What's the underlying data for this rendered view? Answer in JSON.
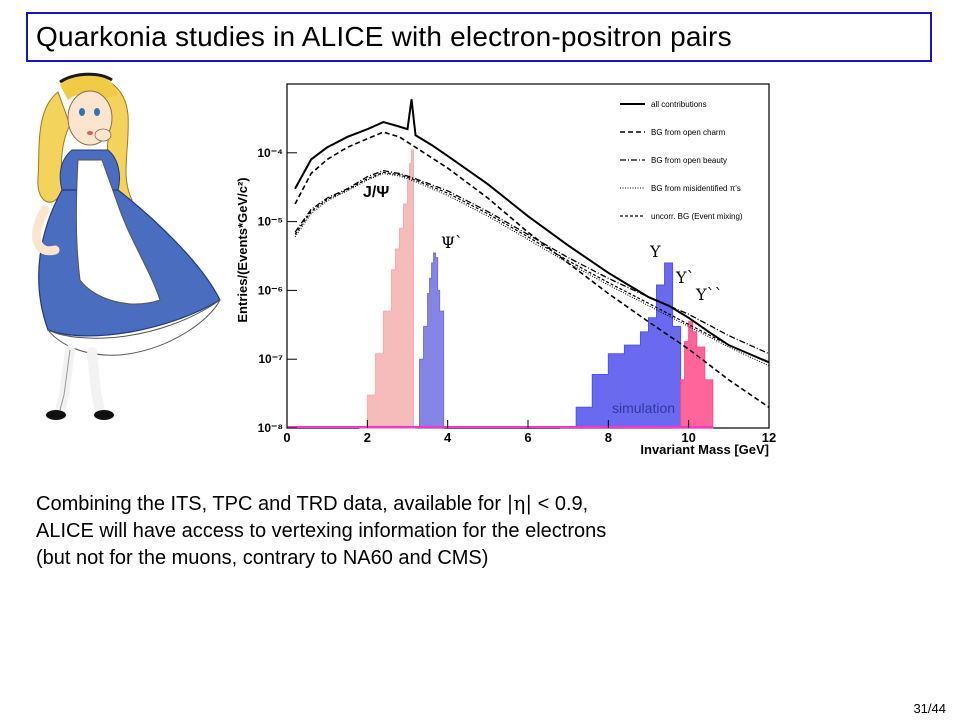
{
  "slide": {
    "title": "Quarkonia studies in ALICE with electron-positron pairs",
    "body_line1_pre": "Combining the ITS, TPC and TRD data, available for ",
    "body_line1_eta": "|η|",
    "body_line1_post": " < 0.9,",
    "body_line2": "ALICE will have access to vertexing information for the electrons",
    "body_line3": "(but not for the muons, contrary to NA60 and CMS)",
    "page": "31/44",
    "illustration": "alice-cartoon"
  },
  "chart_data": {
    "type": "line",
    "log_y": true,
    "xlim": [
      0,
      12
    ],
    "ylim": [
      1e-08,
      0.001
    ],
    "xlabel": "Invariant Mass [GeV]",
    "ylabel": "Entries/(Events*GeV/c²)",
    "x_ticks": [
      "0",
      "2",
      "4",
      "6",
      "8",
      "10",
      "12"
    ],
    "y_ticks": [
      "10⁻⁸",
      "10⁻⁷",
      "10⁻⁶",
      "10⁻⁵",
      "10⁻⁴"
    ],
    "legend": [
      "all contributions",
      "BG from open charm",
      "BG from open beauty",
      "BG from misidentified π's",
      "uncorr. BG (Event mixing)"
    ],
    "legend_position": "top-right",
    "annotations": [
      "J/Ψ",
      "Ψ`",
      "Υ",
      "Υ`",
      "Υ``",
      "simulation"
    ],
    "series": [
      {
        "name": "all contributions",
        "x": [
          0.2,
          0.6,
          1,
          1.5,
          2,
          2.4,
          2.8,
          3.0,
          3.1,
          3.2,
          3.6,
          4,
          5,
          6,
          7,
          8,
          9,
          9.5,
          10,
          10.5,
          11,
          11.5,
          12
        ],
        "y": [
          3e-05,
          8e-05,
          0.00012,
          0.00017,
          0.00022,
          0.00028,
          0.00024,
          0.00022,
          0.0006,
          0.00018,
          0.00013,
          9e-05,
          3.5e-05,
          1.2e-05,
          4.5e-06,
          1.8e-06,
          8e-07,
          6e-07,
          4e-07,
          2.5e-07,
          1.6e-07,
          1.2e-07,
          9e-08
        ]
      },
      {
        "name": "BG from open charm",
        "x": [
          0.2,
          0.6,
          1,
          1.5,
          2,
          2.4,
          2.8,
          3.2,
          4,
          5,
          6,
          7,
          8,
          9,
          10,
          11,
          12
        ],
        "y": [
          1.8e-05,
          5e-05,
          8e-05,
          0.00012,
          0.00016,
          0.0002,
          0.00017,
          0.00012,
          6e-05,
          2.2e-05,
          7e-06,
          2.5e-06,
          9e-07,
          3.5e-07,
          1.4e-07,
          5e-08,
          2e-08
        ]
      },
      {
        "name": "BG from open beauty",
        "x": [
          0.2,
          0.6,
          1,
          1.5,
          2,
          2.4,
          2.8,
          3.2,
          4,
          5,
          6,
          7,
          8,
          9,
          10,
          11,
          12
        ],
        "y": [
          7e-06,
          1.5e-05,
          2.2e-05,
          3e-05,
          4.5e-05,
          5.5e-05,
          5e-05,
          4.2e-05,
          2.8e-05,
          1.4e-05,
          6.5e-06,
          3e-06,
          1.5e-06,
          8e-07,
          4.5e-07,
          2.2e-07,
          1.2e-07
        ]
      },
      {
        "name": "BG from misidentified π's",
        "x": [
          0.2,
          0.6,
          1,
          1.5,
          2,
          2.4,
          2.8,
          3.2,
          4,
          5,
          6,
          7,
          8,
          9,
          10,
          11,
          12
        ],
        "y": [
          6e-06,
          1.3e-05,
          2e-05,
          2.8e-05,
          4e-05,
          5e-05,
          4.6e-05,
          3.8e-05,
          2.4e-05,
          1.2e-05,
          5.5e-06,
          2.5e-06,
          1.2e-06,
          6e-07,
          3e-07,
          1.5e-07,
          8e-08
        ]
      },
      {
        "name": "uncorr. BG (Event mixing)",
        "x": [
          0.2,
          0.6,
          1,
          1.5,
          2,
          2.4,
          2.8,
          3.2,
          4,
          5,
          6,
          7,
          8,
          9,
          10,
          11,
          12
        ],
        "y": [
          6.5e-06,
          1.4e-05,
          2.1e-05,
          2.9e-05,
          4.2e-05,
          5.2e-05,
          4.8e-05,
          4e-05,
          2.6e-05,
          1.3e-05,
          6e-06,
          2.7e-06,
          1.3e-06,
          6.5e-07,
          3.2e-07,
          1.6e-07,
          9e-08
        ]
      }
    ],
    "peaks": [
      {
        "label": "J/Ψ",
        "color": "#f4b0b0",
        "x": [
          1.8,
          2.0,
          2.2,
          2.4,
          2.6,
          2.7,
          2.8,
          2.9,
          3.0,
          3.05,
          3.1,
          3.15,
          3.2
        ],
        "y": [
          1e-08,
          3e-08,
          1.2e-07,
          5e-07,
          2e-06,
          4e-06,
          8e-06,
          1.8e-05,
          4e-05,
          7e-05,
          0.00011,
          1e-08,
          1e-08
        ]
      },
      {
        "label": "Ψ`",
        "color": "#7070e0",
        "x": [
          3.2,
          3.3,
          3.4,
          3.5,
          3.55,
          3.6,
          3.65,
          3.7,
          3.75,
          3.8,
          3.9
        ],
        "y": [
          1e-08,
          1e-07,
          3e-07,
          9e-07,
          1.5e-06,
          2.5e-06,
          3.5e-06,
          3e-06,
          1e-06,
          5e-07,
          1e-08
        ]
      },
      {
        "label": "Υ",
        "color": "#5050ee",
        "x": [
          6.8,
          7.2,
          7.6,
          8.0,
          8.4,
          8.8,
          9.0,
          9.2,
          9.4,
          9.6,
          9.8
        ],
        "y": [
          1e-08,
          2e-08,
          6e-08,
          1.2e-07,
          1.6e-07,
          2.5e-07,
          4e-07,
          1.2e-06,
          2.5e-06,
          3e-07,
          1e-08
        ]
      },
      {
        "label": "Υ`",
        "color": "#ff4a8a",
        "x": [
          9.6,
          9.8,
          9.9,
          10.0,
          10.1,
          10.2,
          10.4,
          10.6
        ],
        "y": [
          1e-08,
          5e-08,
          1.8e-07,
          3.5e-07,
          2.5e-07,
          1.5e-07,
          5e-08,
          1e-08
        ]
      }
    ]
  }
}
